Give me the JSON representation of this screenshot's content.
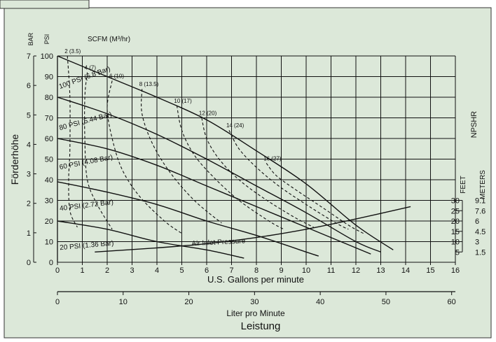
{
  "chart_data": {
    "type": "line",
    "x_axis": {
      "label": "U.S. Gallons per minute",
      "range": [
        0,
        16
      ],
      "ticks": [
        "0",
        "1",
        "2",
        "3",
        "4",
        "5",
        "6",
        "7",
        "8",
        "9",
        "10",
        "11",
        "12",
        "13",
        "14",
        "15",
        "16"
      ]
    },
    "x2_axis": {
      "label": "Liter pro Minute",
      "range": [
        0,
        60
      ],
      "ticks": [
        "0",
        "10",
        "20",
        "30",
        "40",
        "50",
        "60"
      ]
    },
    "footer_label": "Leistung",
    "y_axis_psi": {
      "label": "PSI",
      "range": [
        0,
        100
      ],
      "ticks": [
        "0",
        "10",
        "20",
        "30",
        "40",
        "50",
        "60",
        "70",
        "80",
        "90",
        "100"
      ]
    },
    "y_axis_bar": {
      "label": "BAR",
      "range": [
        0,
        7
      ],
      "ticks": [
        "0",
        "1",
        "2",
        "3",
        "4",
        "5",
        "6",
        "7"
      ]
    },
    "y_title": "Förderhöhe",
    "scfm_header": "SCFM (M³/hr)",
    "npshr": {
      "title": "NPSHR",
      "feet_label": "FEET",
      "meters_label": "METERS",
      "feet": [
        "30",
        "25",
        "20",
        "15",
        "10",
        "5"
      ],
      "meters": [
        "9.1",
        "7.6",
        "6",
        "4.5",
        "3",
        "1.5"
      ],
      "feet_values_psi": [
        30,
        25,
        20,
        15,
        10,
        5
      ]
    },
    "grid": true,
    "series": [
      {
        "name": "100 PSI (6.8 Bar)",
        "points": [
          [
            0,
            100
          ],
          [
            2,
            90
          ],
          [
            4,
            80
          ],
          [
            6,
            69
          ],
          [
            8,
            54
          ],
          [
            10,
            38
          ],
          [
            12,
            18
          ],
          [
            13.5,
            6
          ]
        ]
      },
      {
        "name": "80 PSI (5.44 Bar)",
        "points": [
          [
            0,
            80
          ],
          [
            2,
            72
          ],
          [
            4,
            62
          ],
          [
            6,
            50
          ],
          [
            8,
            37
          ],
          [
            10,
            24
          ],
          [
            12,
            10
          ],
          [
            13,
            5
          ]
        ]
      },
      {
        "name": "60 PSI (4.08 Bar)",
        "points": [
          [
            0,
            60
          ],
          [
            2,
            55
          ],
          [
            4,
            47
          ],
          [
            6,
            37
          ],
          [
            8,
            27
          ],
          [
            10,
            17
          ],
          [
            12,
            7
          ],
          [
            12.6,
            4
          ]
        ]
      },
      {
        "name": "40 PSI (2.72 Bar)",
        "points": [
          [
            0,
            39
          ],
          [
            2,
            34
          ],
          [
            4,
            28
          ],
          [
            6,
            20
          ],
          [
            8,
            13
          ],
          [
            10,
            5
          ],
          [
            10.5,
            3
          ]
        ]
      },
      {
        "name": "20 PSI (1.36 Bar)",
        "points": [
          [
            0,
            20
          ],
          [
            2,
            16
          ],
          [
            4,
            10
          ],
          [
            6,
            6
          ],
          [
            7.5,
            2
          ]
        ]
      },
      {
        "name": "Air Inlet Pressure",
        "points": []
      },
      {
        "name": "NPSHR",
        "points": [
          [
            1.5,
            5
          ],
          [
            4,
            7
          ],
          [
            6,
            9
          ],
          [
            8,
            12
          ],
          [
            10,
            16
          ],
          [
            12,
            21
          ],
          [
            14.2,
            27
          ]
        ]
      }
    ],
    "scfm_lines": [
      {
        "label": "2 (3.5)",
        "points": [
          [
            0.4,
            100
          ],
          [
            0.5,
            80
          ],
          [
            0.5,
            55
          ],
          [
            0.45,
            40
          ],
          [
            0.5,
            25
          ],
          [
            0.8,
            17
          ]
        ]
      },
      {
        "label": "4 (7)",
        "points": [
          [
            1.2,
            92
          ],
          [
            1.1,
            80
          ],
          [
            1.1,
            60
          ],
          [
            1.2,
            40
          ],
          [
            1.6,
            28
          ],
          [
            2.2,
            16
          ]
        ]
      },
      {
        "label": "6 (10)",
        "points": [
          [
            2.2,
            88
          ],
          [
            2.0,
            75
          ],
          [
            2.2,
            60
          ],
          [
            2.6,
            45
          ],
          [
            3.3,
            32
          ],
          [
            4.3,
            20
          ],
          [
            5.0,
            14
          ]
        ]
      },
      {
        "label": "8 (13.5)",
        "points": [
          [
            3.4,
            84
          ],
          [
            3.4,
            72
          ],
          [
            3.8,
            58
          ],
          [
            4.5,
            44
          ],
          [
            5.5,
            30
          ],
          [
            6.6,
            19
          ]
        ]
      },
      {
        "label": "10 (17)",
        "points": [
          [
            4.8,
            76
          ],
          [
            5.0,
            64
          ],
          [
            5.5,
            52
          ],
          [
            6.3,
            41
          ],
          [
            7.3,
            30
          ],
          [
            8.5,
            20
          ],
          [
            9.1,
            16
          ]
        ]
      },
      {
        "label": "12 (20)",
        "points": [
          [
            5.8,
            70
          ],
          [
            6.0,
            60
          ],
          [
            6.5,
            50
          ],
          [
            7.3,
            40
          ],
          [
            8.3,
            31
          ],
          [
            9.5,
            22
          ],
          [
            10.3,
            17
          ]
        ]
      },
      {
        "label": "14 (24)",
        "points": [
          [
            6.9,
            64
          ],
          [
            7.3,
            55
          ],
          [
            8.0,
            46
          ],
          [
            8.9,
            37
          ],
          [
            10.0,
            28
          ],
          [
            11.2,
            19
          ],
          [
            11.7,
            16
          ]
        ]
      },
      {
        "label": "16 (27)",
        "points": [
          [
            8.4,
            48
          ],
          [
            8.8,
            42
          ],
          [
            9.6,
            35
          ],
          [
            10.6,
            27
          ],
          [
            11.7,
            18
          ],
          [
            12.3,
            14
          ]
        ]
      }
    ]
  }
}
